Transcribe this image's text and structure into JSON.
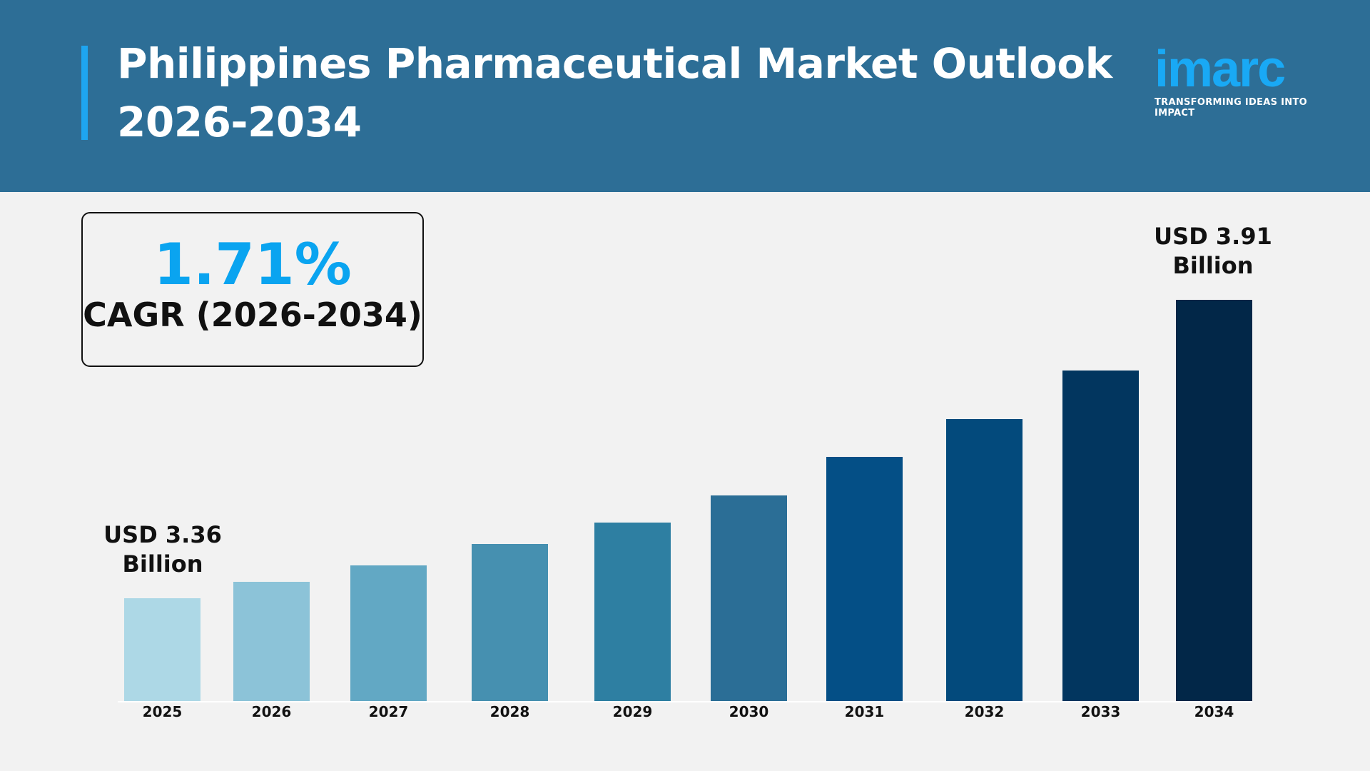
{
  "header": {
    "title_line1": "Philippines Pharmaceutical Market Outlook",
    "title_line2": "2026-2034",
    "accent_color": "#1ea5f0",
    "background": "#2d6e96"
  },
  "logo": {
    "word": "imarc",
    "tagline": "TRANSFORMING IDEAS INTO IMPACT"
  },
  "cagr": {
    "value": "1.71%",
    "label": "CAGR (2026-2034)"
  },
  "chart_data": {
    "type": "bar",
    "categories": [
      "2025",
      "2026",
      "2027",
      "2028",
      "2029",
      "2030",
      "2031",
      "2032",
      "2033",
      "2034"
    ],
    "values": [
      3.36,
      3.39,
      3.42,
      3.46,
      3.5,
      3.55,
      3.62,
      3.69,
      3.78,
      3.91
    ],
    "unit": "USD Billion",
    "colors": [
      "#add8e6",
      "#8cc3d8",
      "#62a8c4",
      "#4690b0",
      "#2e7fa2",
      "#2b6e96",
      "#044f86",
      "#034a7c",
      "#02365f",
      "#022748"
    ],
    "annotations": {
      "start": {
        "line1": "USD 3.36",
        "line2": "Billion"
      },
      "end": {
        "line1": "USD 3.91",
        "line2": "Billion"
      }
    },
    "grid": false,
    "legend": "none"
  }
}
